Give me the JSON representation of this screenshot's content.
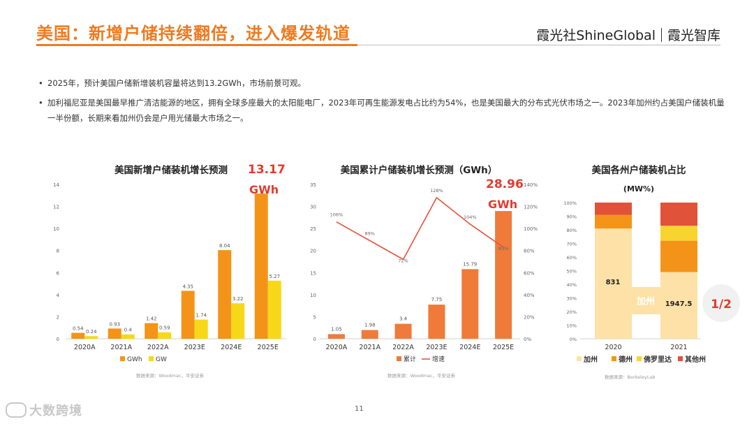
{
  "header": {
    "title": "美国：新增户储持续翻倍，进入爆发轨道",
    "brand_left": "霞光社ShineGlobal",
    "brand_right": "霞光智库"
  },
  "bullets": [
    "2025年，预计美国户储新增装机容量将达到13.2GWh，市场前景可观。",
    "加利福尼亚是美国最早推广清洁能源的地区，拥有全球多座最大的太阳能电厂，2023年可再生能源发电占比约为54%，也是美国最大的分布式光伏市场之一。2023年加州约占美国户储装机量一半份额，长期来看加州仍会是户用光储最大市场之一。"
  ],
  "page_number": "11",
  "watermark": "大数跨境",
  "colors": {
    "accent": "#f07a1e",
    "series_orange": "#f39419",
    "series_yellow": "#f7d819",
    "series_red": "#e8523a",
    "line_red": "#e8523a",
    "highlight_red": "#e33b2e",
    "california": "#fde1a6",
    "texas": "#f39419",
    "florida": "#f7d42e",
    "other": "#e0523a"
  },
  "chart_data": [
    {
      "type": "bar",
      "title": "美国新增户储装机增长预测",
      "callout": "13.17\nGWh",
      "callout_lines": [
        "13.17",
        "GWh"
      ],
      "source": "数据来源：Woodmac，平安证券",
      "categories": [
        "2020A",
        "2021A",
        "2022A",
        "2023E",
        "2024E",
        "2025E"
      ],
      "series": [
        {
          "name": "GWh",
          "values": [
            0.54,
            0.93,
            1.42,
            4.35,
            8.04,
            13.17
          ]
        },
        {
          "name": "GW",
          "values": [
            0.24,
            0.4,
            0.59,
            1.74,
            3.22,
            5.27
          ]
        }
      ],
      "value_labels": [
        [
          "0.54",
          "0.93",
          "1.42",
          "4.35",
          "8.04",
          ""
        ],
        [
          "0.24",
          "0.4",
          "0.59",
          "1.74",
          "3.22",
          "5.27"
        ]
      ],
      "yticks": [
        "0",
        "2",
        "4",
        "6",
        "8",
        "10",
        "12",
        "14"
      ],
      "ylim": [
        0,
        14
      ],
      "legend": "bottom"
    },
    {
      "type": "bar+line",
      "title": "美国累计户储装机增长预测（GWh）",
      "callout_lines": [
        "28.96",
        "GWh"
      ],
      "source": "数据来源：Woodmac，平安证券",
      "categories": [
        "2020A",
        "2021A",
        "2022A",
        "2023E",
        "2024E",
        "2025E"
      ],
      "series": [
        {
          "name": "累计",
          "type": "bar",
          "values": [
            1.05,
            1.98,
            3.4,
            7.75,
            15.79,
            28.96
          ]
        },
        {
          "name": "增速",
          "type": "line",
          "axis": "right",
          "values": [
            106,
            89,
            72,
            128,
            104,
            83
          ]
        }
      ],
      "bar_labels": [
        "1.05",
        "1.98",
        "3.4",
        "7.75",
        "15.79",
        ""
      ],
      "line_labels": [
        "106%",
        "89%",
        "72%",
        "128%",
        "104%",
        "83%"
      ],
      "yticks_left": [
        "0",
        "5",
        "10",
        "15",
        "20",
        "25",
        "30",
        "35"
      ],
      "ylim_left": [
        0,
        35
      ],
      "yticks_right": [
        "0%",
        "20%",
        "40%",
        "60%",
        "80%",
        "100%",
        "120%",
        "140%"
      ],
      "ylim_right": [
        0,
        140
      ],
      "legend": "bottom"
    },
    {
      "type": "stacked-bar-100",
      "title": "美国各州户储装机占比",
      "subtitle": "(MW%)",
      "source": "数据来源：BerkeleyLab",
      "categories": [
        "2020",
        "2021"
      ],
      "series": [
        {
          "name": "加州",
          "values": [
            81,
            49
          ]
        },
        {
          "name": "德州",
          "values": [
            10,
            23
          ]
        },
        {
          "name": "佛罗里达",
          "values": [
            0,
            11
          ]
        },
        {
          "name": "其他州",
          "values": [
            9,
            17
          ]
        }
      ],
      "annotations": {
        "2020_ca": "831",
        "2021_ca": "1947.5",
        "ca_label": "加州",
        "ratio": "1/2"
      },
      "yticks": [
        "0%",
        "10%",
        "20%",
        "30%",
        "40%",
        "50%",
        "60%",
        "70%",
        "80%",
        "90%",
        "100%"
      ],
      "ylim": [
        0,
        100
      ],
      "legend": "bottom"
    }
  ]
}
